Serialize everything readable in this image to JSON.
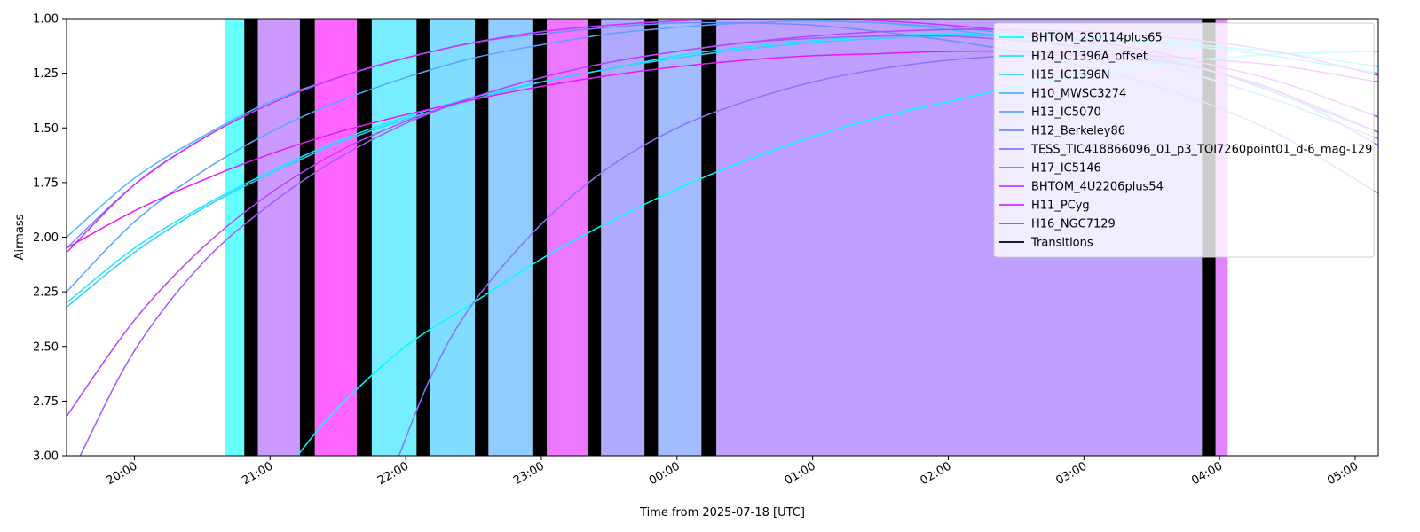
{
  "chart_data": {
    "type": "line",
    "title": "",
    "xlabel": "Time from 2025-07-18 [UTC]",
    "ylabel": "Airmass",
    "x_unit": "hours UTC from 2025-07-18 00:00 (values over 24 are 2025-07-19)",
    "xlim": [
      19.5,
      29.17
    ],
    "ylim": [
      3.0,
      1.0
    ],
    "y_inverted": true,
    "x_ticks": [
      {
        "value": 20,
        "label": "20:00"
      },
      {
        "value": 21,
        "label": "21:00"
      },
      {
        "value": 22,
        "label": "22:00"
      },
      {
        "value": 23,
        "label": "23:00"
      },
      {
        "value": 24,
        "label": "00:00"
      },
      {
        "value": 25,
        "label": "01:00"
      },
      {
        "value": 26,
        "label": "02:00"
      },
      {
        "value": 27,
        "label": "03:00"
      },
      {
        "value": 28,
        "label": "04:00"
      },
      {
        "value": 29,
        "label": "05:00"
      }
    ],
    "y_ticks": [
      {
        "value": 1.0,
        "label": "1.00"
      },
      {
        "value": 1.25,
        "label": "1.25"
      },
      {
        "value": 1.5,
        "label": "1.50"
      },
      {
        "value": 1.75,
        "label": "1.75"
      },
      {
        "value": 2.0,
        "label": "2.00"
      },
      {
        "value": 2.25,
        "label": "2.25"
      },
      {
        "value": 2.5,
        "label": "2.50"
      },
      {
        "value": 2.75,
        "label": "2.75"
      },
      {
        "value": 3.0,
        "label": "3.00"
      }
    ],
    "grid": false,
    "legend_position": "top-right",
    "bands": [
      {
        "x0": 20.67,
        "x1": 20.81,
        "color": "#66ffff"
      },
      {
        "x0": 20.91,
        "x1": 21.22,
        "color": "#cc99ff"
      },
      {
        "x0": 21.33,
        "x1": 21.64,
        "color": "#ff66ff"
      },
      {
        "x0": 21.75,
        "x1": 22.08,
        "color": "#77eeff"
      },
      {
        "x0": 22.18,
        "x1": 22.51,
        "color": "#80ddff"
      },
      {
        "x0": 22.61,
        "x1": 22.94,
        "color": "#90ccff"
      },
      {
        "x0": 23.04,
        "x1": 23.34,
        "color": "#ee77ff"
      },
      {
        "x0": 23.44,
        "x1": 23.76,
        "color": "#b0aaff"
      },
      {
        "x0": 23.86,
        "x1": 24.18,
        "color": "#a3bbff"
      },
      {
        "x0": 24.29,
        "x1": 27.87,
        "color": "#bfa0ff"
      },
      {
        "x0": 27.97,
        "x1": 28.06,
        "color": "#e283ff"
      }
    ],
    "transitions": [
      {
        "x0": 20.81,
        "x1": 20.91
      },
      {
        "x0": 21.22,
        "x1": 21.33
      },
      {
        "x0": 21.64,
        "x1": 21.75
      },
      {
        "x0": 22.08,
        "x1": 22.18
      },
      {
        "x0": 22.51,
        "x1": 22.61
      },
      {
        "x0": 22.94,
        "x1": 23.04
      },
      {
        "x0": 23.34,
        "x1": 23.44
      },
      {
        "x0": 23.76,
        "x1": 23.86
      },
      {
        "x0": 24.18,
        "x1": 24.29
      },
      {
        "x0": 27.87,
        "x1": 27.97
      }
    ],
    "series": [
      {
        "name": "BHTOM_2S0114plus65",
        "color": "#00ffff",
        "x": [
          21.2,
          21.5,
          22.0,
          22.5,
          23.0,
          23.5,
          24.0,
          24.5,
          25.0,
          25.5,
          26.0,
          26.5,
          27.0,
          27.5,
          28.0,
          28.5,
          29.17
        ],
        "y": [
          3.0,
          2.78,
          2.5,
          2.3,
          2.1,
          1.93,
          1.78,
          1.65,
          1.54,
          1.45,
          1.38,
          1.31,
          1.26,
          1.21,
          1.18,
          1.16,
          1.15
        ]
      },
      {
        "name": "H14_IC1396A_offset",
        "color": "#17e8ff",
        "x": [
          19.5,
          20.0,
          20.5,
          21.0,
          21.5,
          22.0,
          22.5,
          23.0,
          23.5,
          24.0,
          24.5,
          25.0,
          25.5,
          26.0,
          26.5,
          27.0,
          27.5,
          28.0,
          28.5,
          29.17
        ],
        "y": [
          2.3,
          2.05,
          1.86,
          1.7,
          1.56,
          1.45,
          1.36,
          1.29,
          1.23,
          1.17,
          1.13,
          1.1,
          1.08,
          1.07,
          1.07,
          1.08,
          1.1,
          1.13,
          1.16,
          1.22
        ]
      },
      {
        "name": "H15_IC1396N",
        "color": "#2ed0ff",
        "x": [
          19.5,
          20.0,
          20.5,
          21.0,
          21.5,
          22.0,
          22.5,
          23.0,
          23.5,
          24.0,
          24.5,
          25.0,
          25.5,
          26.0,
          26.5,
          27.0,
          27.5,
          28.0,
          28.5,
          29.17
        ],
        "y": [
          2.32,
          2.07,
          1.87,
          1.71,
          1.57,
          1.46,
          1.37,
          1.29,
          1.23,
          1.18,
          1.14,
          1.11,
          1.09,
          1.08,
          1.08,
          1.09,
          1.11,
          1.14,
          1.18,
          1.25
        ]
      },
      {
        "name": "H10_MWSC3274",
        "color": "#45b9ff",
        "x": [
          19.5,
          20.0,
          20.5,
          21.0,
          21.5,
          22.0,
          22.5,
          23.0,
          23.5,
          24.0,
          24.5,
          25.0,
          25.5,
          26.0,
          26.5,
          27.0,
          27.5,
          28.0,
          28.5,
          29.17
        ],
        "y": [
          2.0,
          1.73,
          1.54,
          1.38,
          1.27,
          1.18,
          1.11,
          1.06,
          1.03,
          1.01,
          1.0,
          1.01,
          1.02,
          1.05,
          1.09,
          1.14,
          1.2,
          1.29,
          1.39,
          1.55
        ]
      },
      {
        "name": "H13_IC5070",
        "color": "#5ca2ff",
        "x": [
          19.5,
          20.0,
          20.5,
          21.0,
          21.5,
          22.0,
          22.5,
          23.0,
          23.5,
          24.0,
          24.5,
          25.0,
          25.5,
          26.0,
          26.5,
          27.0,
          27.5,
          28.0,
          28.5,
          29.17
        ],
        "y": [
          2.25,
          1.93,
          1.7,
          1.52,
          1.38,
          1.27,
          1.18,
          1.12,
          1.07,
          1.04,
          1.02,
          1.01,
          1.02,
          1.04,
          1.07,
          1.11,
          1.17,
          1.25,
          1.36,
          1.52
        ]
      },
      {
        "name": "H12_Berkeley86",
        "color": "#738bff",
        "x": [
          19.5,
          20.0,
          20.5,
          21.0,
          21.5,
          22.0,
          22.5,
          23.0,
          23.5,
          24.0,
          24.5,
          25.0,
          25.5,
          26.0,
          26.5,
          27.0,
          27.5,
          28.0,
          28.5,
          29.17
        ],
        "y": [
          2.05,
          1.76,
          1.55,
          1.39,
          1.27,
          1.18,
          1.11,
          1.07,
          1.04,
          1.02,
          1.02,
          1.03,
          1.06,
          1.1,
          1.15,
          1.22,
          1.3,
          1.41,
          1.55,
          1.8
        ]
      },
      {
        "name": "TESS_TIC418866096_01_p3_TOI7260point01_d-6_mag-129",
        "color": "#8b73ff",
        "x": [
          21.95,
          22.2,
          22.5,
          23.0,
          23.5,
          24.0,
          24.5,
          25.0,
          25.5,
          26.0,
          26.5,
          27.0,
          27.5,
          28.0,
          28.5,
          29.17
        ],
        "y": [
          3.0,
          2.62,
          2.3,
          1.94,
          1.68,
          1.5,
          1.38,
          1.29,
          1.23,
          1.19,
          1.17,
          1.17,
          1.19,
          1.25,
          1.35,
          1.58
        ]
      },
      {
        "name": "H17_IC5146",
        "color": "#a25cff",
        "x": [
          19.6,
          20.0,
          20.5,
          21.0,
          21.5,
          22.0,
          22.5,
          23.0,
          23.5,
          24.0,
          24.5,
          25.0,
          25.5,
          26.0,
          26.5,
          27.0,
          27.5,
          28.0,
          28.5,
          29.17
        ],
        "y": [
          3.0,
          2.52,
          2.12,
          1.85,
          1.64,
          1.48,
          1.36,
          1.27,
          1.2,
          1.15,
          1.11,
          1.09,
          1.08,
          1.08,
          1.1,
          1.13,
          1.18,
          1.25,
          1.35,
          1.52
        ]
      },
      {
        "name": "BHTOM_4U2206plus54",
        "color": "#b945ff",
        "x": [
          19.5,
          20.0,
          20.5,
          21.0,
          21.5,
          22.0,
          22.5,
          23.0,
          23.5,
          24.0,
          24.5,
          25.0,
          25.5,
          26.0,
          26.5,
          27.0,
          27.5,
          28.0,
          28.5,
          29.17
        ],
        "y": [
          2.82,
          2.38,
          2.05,
          1.8,
          1.61,
          1.47,
          1.36,
          1.27,
          1.2,
          1.15,
          1.11,
          1.08,
          1.06,
          1.05,
          1.05,
          1.06,
          1.08,
          1.11,
          1.16,
          1.26
        ]
      },
      {
        "name": "H11_PCyg",
        "color": "#d02eff",
        "x": [
          19.5,
          20.0,
          20.5,
          21.0,
          21.5,
          22.0,
          22.5,
          23.0,
          23.5,
          24.0,
          24.5,
          25.0,
          25.5,
          26.0,
          26.5,
          27.0,
          27.5,
          28.0,
          28.5,
          29.17
        ],
        "y": [
          2.07,
          1.76,
          1.55,
          1.39,
          1.27,
          1.18,
          1.11,
          1.06,
          1.03,
          1.01,
          1.0,
          1.0,
          1.01,
          1.03,
          1.06,
          1.1,
          1.15,
          1.22,
          1.3,
          1.45
        ]
      },
      {
        "name": "H16_NGC7129",
        "color": "#e817ff",
        "x": [
          19.5,
          20.0,
          20.5,
          21.0,
          21.5,
          22.0,
          22.5,
          23.0,
          23.5,
          24.0,
          24.5,
          25.0,
          25.5,
          26.0,
          26.5,
          27.0,
          27.5,
          28.0,
          28.5,
          29.17
        ],
        "y": [
          2.05,
          1.88,
          1.74,
          1.62,
          1.52,
          1.44,
          1.37,
          1.31,
          1.26,
          1.22,
          1.19,
          1.17,
          1.16,
          1.15,
          1.15,
          1.16,
          1.17,
          1.19,
          1.22,
          1.29
        ]
      }
    ],
    "legend": [
      {
        "label": "BHTOM_2S0114plus65",
        "color": "#00ffff"
      },
      {
        "label": "H14_IC1396A_offset",
        "color": "#17e8ff"
      },
      {
        "label": "H15_IC1396N",
        "color": "#2ed0ff"
      },
      {
        "label": "H10_MWSC3274",
        "color": "#45b9ff"
      },
      {
        "label": "H13_IC5070",
        "color": "#5ca2ff"
      },
      {
        "label": "H12_Berkeley86",
        "color": "#738bff"
      },
      {
        "label": "TESS_TIC418866096_01_p3_TOI7260point01_d-6_mag-129",
        "color": "#8b73ff"
      },
      {
        "label": "H17_IC5146",
        "color": "#a25cff"
      },
      {
        "label": "BHTOM_4U2206plus54",
        "color": "#b945ff"
      },
      {
        "label": "H11_PCyg",
        "color": "#d02eff"
      },
      {
        "label": "H16_NGC7129",
        "color": "#e817ff"
      },
      {
        "label": "Transitions",
        "color": "#000000"
      }
    ]
  }
}
